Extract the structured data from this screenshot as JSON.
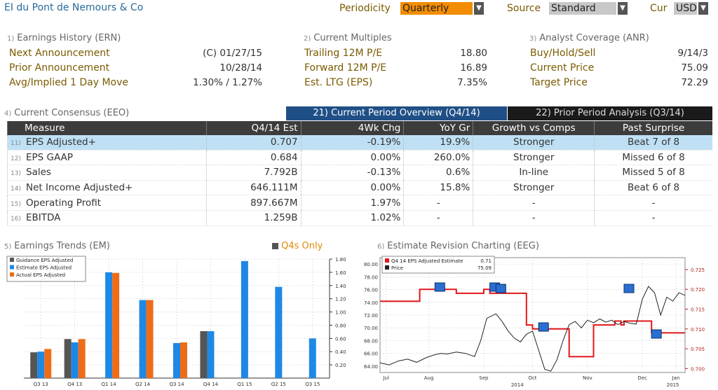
{
  "header": {
    "company": "EI du Pont de Nemours & Co",
    "periodicity_label": "Periodicity",
    "periodicity_value": "Quarterly",
    "source_label": "Source",
    "source_value": "Standard",
    "cur_label": "Cur",
    "cur_value": "USD"
  },
  "earnings_history": {
    "num": "1)",
    "title": "Earnings History (ERN)",
    "rows": [
      {
        "label": "Next Announcement",
        "value": "(C)  01/27/15"
      },
      {
        "label": "Prior Announcement",
        "value": "10/28/14"
      },
      {
        "label": "Avg/Implied 1 Day Move",
        "value": "1.30% / 1.27%"
      }
    ]
  },
  "current_multiples": {
    "num": "2)",
    "title": "Current Multiples",
    "rows": [
      {
        "label": "Trailing 12M P/E",
        "value": "18.80"
      },
      {
        "label": "Forward 12M P/E",
        "value": "16.89"
      },
      {
        "label": "Est. LTG (EPS)",
        "value": "7.35%"
      }
    ]
  },
  "analyst_coverage": {
    "num": "3)",
    "title": "Analyst Coverage (ANR)",
    "rows": [
      {
        "label": "Buy/Hold/Sell",
        "value": "9/14/3"
      },
      {
        "label": "Current Price",
        "value": "75.09"
      },
      {
        "label": "Target Price",
        "value": "72.29"
      }
    ]
  },
  "consensus": {
    "num": "4)",
    "title": "Current Consensus (EEO)",
    "tab1": "21) Current Period Overview (Q4/14)",
    "tab2": "22) Prior Period Analysis (Q3/14)",
    "columns": [
      "Measure",
      "Q4/14 Est",
      "4Wk Chg",
      "YoY Gr",
      "Growth vs Comps",
      "Past Surprise"
    ],
    "rows": [
      {
        "n": "11)",
        "measure": "EPS Adjusted+",
        "est": "0.707",
        "chg": "-0.19%",
        "yoy": "19.9%",
        "comps": "Stronger",
        "surprise": "Beat 7 of 8"
      },
      {
        "n": "12)",
        "measure": "EPS GAAP",
        "est": "0.684",
        "chg": "0.00%",
        "yoy": "260.0%",
        "comps": "Stronger",
        "surprise": "Missed 6 of 8"
      },
      {
        "n": "13)",
        "measure": "Sales",
        "est": "7.792B",
        "chg": "-0.13%",
        "yoy": "0.6%",
        "comps": "In-line",
        "surprise": "Missed 5 of 8"
      },
      {
        "n": "14)",
        "measure": "Net Income Adjusted+",
        "est": "646.111M",
        "chg": "0.00%",
        "yoy": "15.8%",
        "comps": "Stronger",
        "surprise": "Beat 6 of 8"
      },
      {
        "n": "15)",
        "measure": "Operating Profit",
        "est": "897.667M",
        "chg": "1.97%",
        "yoy": "-",
        "comps": "-",
        "surprise": "-"
      },
      {
        "n": "16)",
        "measure": "EBITDA",
        "est": "1.259B",
        "chg": "1.02%",
        "yoy": "-",
        "comps": "-",
        "surprise": "-"
      }
    ]
  },
  "trends": {
    "num": "5)",
    "title": "Earnings Trends (EM)",
    "q4s_label": "Q4s Only"
  },
  "revision": {
    "num": "6)",
    "title": "Estimate Revision Charting (EEG)"
  },
  "chart_data": [
    {
      "type": "bar",
      "categories": [
        "Q3 13",
        "Q4 13",
        "Q1 14",
        "Q2 14",
        "Q3 14",
        "Q4 14",
        "Q1 15",
        "Q2 15",
        "Q3 15"
      ],
      "series": [
        {
          "name": "Guidance EPS Adjusted",
          "color": "#555555",
          "values": [
            0.39,
            0.59,
            null,
            null,
            null,
            0.71,
            null,
            null,
            null
          ]
        },
        {
          "name": "Estimate EPS Adjusted",
          "color": "#1e88e5",
          "values": [
            0.4,
            0.54,
            1.6,
            1.18,
            0.53,
            0.71,
            1.77,
            1.38,
            0.6
          ]
        },
        {
          "name": "Actual EPS Adjusted",
          "color": "#ef6c17",
          "values": [
            0.44,
            0.59,
            1.59,
            1.18,
            0.54,
            null,
            null,
            null,
            null
          ]
        }
      ],
      "ylim": [
        0,
        1.8
      ],
      "yticks": [
        "0.20",
        "0.40",
        "0.60",
        "0.80",
        "1.00",
        "1.20",
        "1.40",
        "1.60",
        "1.80"
      ],
      "grid": true,
      "legend": "top-left"
    },
    {
      "type": "line",
      "months": [
        "Jul",
        "Aug",
        "Sep",
        "Oct",
        "Nov",
        "Dec",
        "Jan"
      ],
      "years": [
        "2014",
        "2015"
      ],
      "series": [
        {
          "name": "Q4 14 EPS Adjusted Estimate",
          "legend_value": "0.71",
          "color": "#e0181b",
          "axis": "right",
          "x": [
            0,
            13,
            13,
            25,
            25,
            34,
            34,
            36,
            36,
            38,
            38,
            48,
            48,
            50,
            50,
            62,
            62,
            70,
            70,
            77,
            77,
            79,
            79,
            80,
            80,
            89,
            89,
            100
          ],
          "y": [
            0.717,
            0.717,
            0.72,
            0.72,
            0.719,
            0.719,
            0.72,
            0.72,
            0.719,
            0.719,
            0.719,
            0.719,
            0.711,
            0.711,
            0.71,
            0.71,
            0.703,
            0.703,
            0.711,
            0.711,
            0.712,
            0.712,
            0.711,
            0.711,
            0.712,
            0.712,
            0.709,
            0.709
          ]
        },
        {
          "name": "Price",
          "legend_value": "75.09",
          "color": "#222222",
          "axis": "left",
          "x": [
            0,
            3,
            6,
            9,
            12,
            15,
            18,
            20,
            22,
            25,
            28,
            31,
            33,
            35,
            38,
            40,
            42,
            44,
            46,
            48,
            50,
            52,
            54,
            56,
            58,
            60,
            62,
            64,
            66,
            68,
            70,
            72,
            74,
            76,
            78,
            80,
            82,
            84,
            86,
            88,
            90,
            92,
            94,
            96,
            98,
            100
          ],
          "y": [
            64.5,
            64.2,
            64.8,
            65.1,
            64.6,
            65.3,
            65.8,
            66.0,
            65.9,
            66.2,
            66.0,
            65.5,
            68.0,
            71.5,
            72.2,
            71.0,
            69.5,
            68.4,
            67.8,
            69.0,
            69.5,
            66.5,
            63.5,
            63.2,
            65.0,
            68.0,
            70.5,
            71.0,
            70.0,
            71.2,
            70.8,
            71.4,
            70.9,
            71.2,
            70.5,
            71.0,
            70.7,
            70.6,
            74.5,
            76.5,
            75.5,
            72.0,
            74.8,
            74.2,
            75.5,
            75.1
          ]
        }
      ],
      "left_ylim": [
        63,
        81
      ],
      "left_yticks": [
        "64.00",
        "66.00",
        "68.00",
        "70.00",
        "72.00",
        "74.00",
        "76.00",
        "78.00",
        "80.00"
      ],
      "right_ylim": [
        0.699,
        0.728
      ],
      "right_yticks": [
        "0.700",
        "0.705",
        "0.710",
        "0.715",
        "0.720",
        "0.725"
      ],
      "grid": true,
      "legend": "top-left"
    }
  ]
}
